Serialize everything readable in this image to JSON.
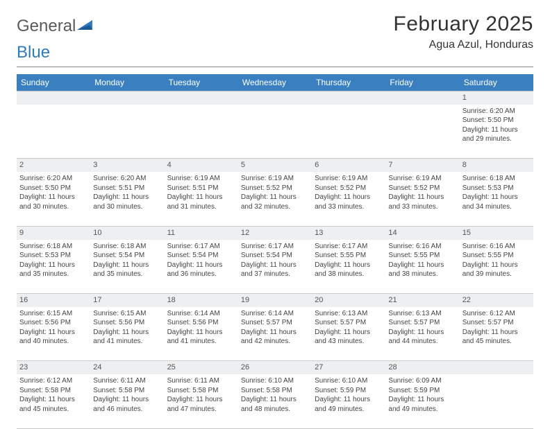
{
  "brand": {
    "part1": "General",
    "part2": "Blue"
  },
  "title": "February 2025",
  "location": "Agua Azul, Honduras",
  "colors": {
    "header_bg": "#3a80c0",
    "header_text": "#ffffff",
    "daynum_bg": "#eeeff0",
    "border": "#bfbfbf",
    "brand_blue": "#2f7ac0"
  },
  "weekdays": [
    "Sunday",
    "Monday",
    "Tuesday",
    "Wednesday",
    "Thursday",
    "Friday",
    "Saturday"
  ],
  "weeks": [
    [
      {
        "n": "",
        "sunrise": "",
        "sunset": "",
        "daylight": ""
      },
      {
        "n": "",
        "sunrise": "",
        "sunset": "",
        "daylight": ""
      },
      {
        "n": "",
        "sunrise": "",
        "sunset": "",
        "daylight": ""
      },
      {
        "n": "",
        "sunrise": "",
        "sunset": "",
        "daylight": ""
      },
      {
        "n": "",
        "sunrise": "",
        "sunset": "",
        "daylight": ""
      },
      {
        "n": "",
        "sunrise": "",
        "sunset": "",
        "daylight": ""
      },
      {
        "n": "1",
        "sunrise": "Sunrise: 6:20 AM",
        "sunset": "Sunset: 5:50 PM",
        "daylight": "Daylight: 11 hours and 29 minutes."
      }
    ],
    [
      {
        "n": "2",
        "sunrise": "Sunrise: 6:20 AM",
        "sunset": "Sunset: 5:50 PM",
        "daylight": "Daylight: 11 hours and 30 minutes."
      },
      {
        "n": "3",
        "sunrise": "Sunrise: 6:20 AM",
        "sunset": "Sunset: 5:51 PM",
        "daylight": "Daylight: 11 hours and 30 minutes."
      },
      {
        "n": "4",
        "sunrise": "Sunrise: 6:19 AM",
        "sunset": "Sunset: 5:51 PM",
        "daylight": "Daylight: 11 hours and 31 minutes."
      },
      {
        "n": "5",
        "sunrise": "Sunrise: 6:19 AM",
        "sunset": "Sunset: 5:52 PM",
        "daylight": "Daylight: 11 hours and 32 minutes."
      },
      {
        "n": "6",
        "sunrise": "Sunrise: 6:19 AM",
        "sunset": "Sunset: 5:52 PM",
        "daylight": "Daylight: 11 hours and 33 minutes."
      },
      {
        "n": "7",
        "sunrise": "Sunrise: 6:19 AM",
        "sunset": "Sunset: 5:52 PM",
        "daylight": "Daylight: 11 hours and 33 minutes."
      },
      {
        "n": "8",
        "sunrise": "Sunrise: 6:18 AM",
        "sunset": "Sunset: 5:53 PM",
        "daylight": "Daylight: 11 hours and 34 minutes."
      }
    ],
    [
      {
        "n": "9",
        "sunrise": "Sunrise: 6:18 AM",
        "sunset": "Sunset: 5:53 PM",
        "daylight": "Daylight: 11 hours and 35 minutes."
      },
      {
        "n": "10",
        "sunrise": "Sunrise: 6:18 AM",
        "sunset": "Sunset: 5:54 PM",
        "daylight": "Daylight: 11 hours and 35 minutes."
      },
      {
        "n": "11",
        "sunrise": "Sunrise: 6:17 AM",
        "sunset": "Sunset: 5:54 PM",
        "daylight": "Daylight: 11 hours and 36 minutes."
      },
      {
        "n": "12",
        "sunrise": "Sunrise: 6:17 AM",
        "sunset": "Sunset: 5:54 PM",
        "daylight": "Daylight: 11 hours and 37 minutes."
      },
      {
        "n": "13",
        "sunrise": "Sunrise: 6:17 AM",
        "sunset": "Sunset: 5:55 PM",
        "daylight": "Daylight: 11 hours and 38 minutes."
      },
      {
        "n": "14",
        "sunrise": "Sunrise: 6:16 AM",
        "sunset": "Sunset: 5:55 PM",
        "daylight": "Daylight: 11 hours and 38 minutes."
      },
      {
        "n": "15",
        "sunrise": "Sunrise: 6:16 AM",
        "sunset": "Sunset: 5:55 PM",
        "daylight": "Daylight: 11 hours and 39 minutes."
      }
    ],
    [
      {
        "n": "16",
        "sunrise": "Sunrise: 6:15 AM",
        "sunset": "Sunset: 5:56 PM",
        "daylight": "Daylight: 11 hours and 40 minutes."
      },
      {
        "n": "17",
        "sunrise": "Sunrise: 6:15 AM",
        "sunset": "Sunset: 5:56 PM",
        "daylight": "Daylight: 11 hours and 41 minutes."
      },
      {
        "n": "18",
        "sunrise": "Sunrise: 6:14 AM",
        "sunset": "Sunset: 5:56 PM",
        "daylight": "Daylight: 11 hours and 41 minutes."
      },
      {
        "n": "19",
        "sunrise": "Sunrise: 6:14 AM",
        "sunset": "Sunset: 5:57 PM",
        "daylight": "Daylight: 11 hours and 42 minutes."
      },
      {
        "n": "20",
        "sunrise": "Sunrise: 6:13 AM",
        "sunset": "Sunset: 5:57 PM",
        "daylight": "Daylight: 11 hours and 43 minutes."
      },
      {
        "n": "21",
        "sunrise": "Sunrise: 6:13 AM",
        "sunset": "Sunset: 5:57 PM",
        "daylight": "Daylight: 11 hours and 44 minutes."
      },
      {
        "n": "22",
        "sunrise": "Sunrise: 6:12 AM",
        "sunset": "Sunset: 5:57 PM",
        "daylight": "Daylight: 11 hours and 45 minutes."
      }
    ],
    [
      {
        "n": "23",
        "sunrise": "Sunrise: 6:12 AM",
        "sunset": "Sunset: 5:58 PM",
        "daylight": "Daylight: 11 hours and 45 minutes."
      },
      {
        "n": "24",
        "sunrise": "Sunrise: 6:11 AM",
        "sunset": "Sunset: 5:58 PM",
        "daylight": "Daylight: 11 hours and 46 minutes."
      },
      {
        "n": "25",
        "sunrise": "Sunrise: 6:11 AM",
        "sunset": "Sunset: 5:58 PM",
        "daylight": "Daylight: 11 hours and 47 minutes."
      },
      {
        "n": "26",
        "sunrise": "Sunrise: 6:10 AM",
        "sunset": "Sunset: 5:58 PM",
        "daylight": "Daylight: 11 hours and 48 minutes."
      },
      {
        "n": "27",
        "sunrise": "Sunrise: 6:10 AM",
        "sunset": "Sunset: 5:59 PM",
        "daylight": "Daylight: 11 hours and 49 minutes."
      },
      {
        "n": "28",
        "sunrise": "Sunrise: 6:09 AM",
        "sunset": "Sunset: 5:59 PM",
        "daylight": "Daylight: 11 hours and 49 minutes."
      },
      {
        "n": "",
        "sunrise": "",
        "sunset": "",
        "daylight": ""
      }
    ]
  ]
}
